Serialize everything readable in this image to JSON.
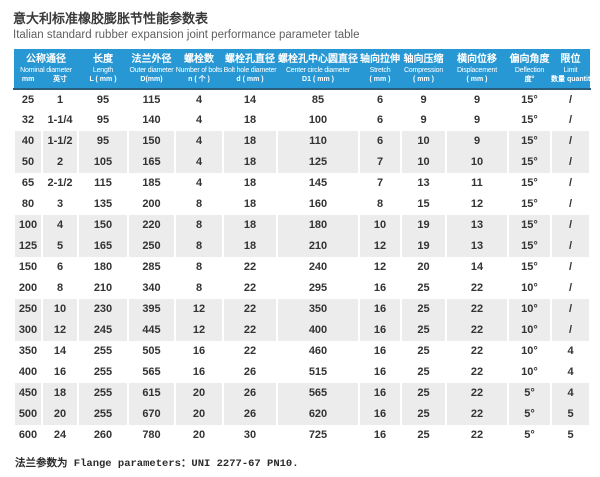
{
  "page": {
    "title_zh": "意大利标准橡胶膨胀节性能参数表",
    "title_en": "Italian standard rubber expansion joint performance parameter table",
    "footer": "法兰参数为 Flange parameters：UNI 2277-67 PN10."
  },
  "colors": {
    "header_bg": "#2798d4",
    "header_text": "#ffffff",
    "header_underline": "#2b5e7d",
    "row_shaded": "#ececec",
    "body_text": "#333333"
  },
  "table": {
    "columns": [
      {
        "zh": "公称通径",
        "en": "Nominal diameter",
        "unit_a": "mm",
        "unit_b": "英寸"
      },
      {
        "zh": "长度",
        "en": "Length",
        "unit": "L ( mm )"
      },
      {
        "zh": "法兰外径",
        "en": "Outer diameter",
        "unit": "D(mm)"
      },
      {
        "zh": "螺栓数",
        "en": "Number of bolts",
        "unit": "n ( 个 )"
      },
      {
        "zh": "螺栓孔直径",
        "en": "Bolt hole diameter",
        "unit": "d ( mm )"
      },
      {
        "zh": "螺栓孔中心圆直径",
        "en": "Center circle diameter",
        "unit": "D1 ( mm )"
      },
      {
        "zh": "轴向拉伸",
        "en": "Stretch",
        "unit": "( mm )"
      },
      {
        "zh": "轴向压缩",
        "en": "Compression",
        "unit": "( mm )"
      },
      {
        "zh": "横向位移",
        "en": "Displacement",
        "unit": "( mm )"
      },
      {
        "zh": "偏向角度",
        "en": "Deflection",
        "unit": "度°"
      },
      {
        "zh": "限位",
        "en": "Limit",
        "unit": "数量 quantity"
      }
    ],
    "rows": [
      [
        "25",
        "1",
        "95",
        "115",
        "4",
        "14",
        "85",
        "6",
        "9",
        "9",
        "15°",
        "/"
      ],
      [
        "32",
        "1-1/4",
        "95",
        "140",
        "4",
        "18",
        "100",
        "6",
        "9",
        "9",
        "15°",
        "/"
      ],
      [
        "40",
        "1-1/2",
        "95",
        "150",
        "4",
        "18",
        "110",
        "6",
        "10",
        "9",
        "15°",
        "/"
      ],
      [
        "50",
        "2",
        "105",
        "165",
        "4",
        "18",
        "125",
        "7",
        "10",
        "10",
        "15°",
        "/"
      ],
      [
        "65",
        "2-1/2",
        "115",
        "185",
        "4",
        "18",
        "145",
        "7",
        "13",
        "11",
        "15°",
        "/"
      ],
      [
        "80",
        "3",
        "135",
        "200",
        "8",
        "18",
        "160",
        "8",
        "15",
        "12",
        "15°",
        "/"
      ],
      [
        "100",
        "4",
        "150",
        "220",
        "8",
        "18",
        "180",
        "10",
        "19",
        "13",
        "15°",
        "/"
      ],
      [
        "125",
        "5",
        "165",
        "250",
        "8",
        "18",
        "210",
        "12",
        "19",
        "13",
        "15°",
        "/"
      ],
      [
        "150",
        "6",
        "180",
        "285",
        "8",
        "22",
        "240",
        "12",
        "20",
        "14",
        "15°",
        "/"
      ],
      [
        "200",
        "8",
        "210",
        "340",
        "8",
        "22",
        "295",
        "16",
        "25",
        "22",
        "10°",
        "/"
      ],
      [
        "250",
        "10",
        "230",
        "395",
        "12",
        "22",
        "350",
        "16",
        "25",
        "22",
        "10°",
        "/"
      ],
      [
        "300",
        "12",
        "245",
        "445",
        "12",
        "22",
        "400",
        "16",
        "25",
        "22",
        "10°",
        "/"
      ],
      [
        "350",
        "14",
        "255",
        "505",
        "16",
        "22",
        "460",
        "16",
        "25",
        "22",
        "10°",
        "4"
      ],
      [
        "400",
        "16",
        "255",
        "565",
        "16",
        "26",
        "515",
        "16",
        "25",
        "22",
        "10°",
        "4"
      ],
      [
        "450",
        "18",
        "255",
        "615",
        "20",
        "26",
        "565",
        "16",
        "25",
        "22",
        "5°",
        "4"
      ],
      [
        "500",
        "20",
        "255",
        "670",
        "20",
        "26",
        "620",
        "16",
        "25",
        "22",
        "5°",
        "5"
      ],
      [
        "600",
        "24",
        "260",
        "780",
        "20",
        "30",
        "725",
        "16",
        "25",
        "22",
        "5°",
        "5"
      ]
    ],
    "shaded_rows": [
      2,
      3,
      6,
      7,
      10,
      11,
      14,
      15
    ]
  }
}
